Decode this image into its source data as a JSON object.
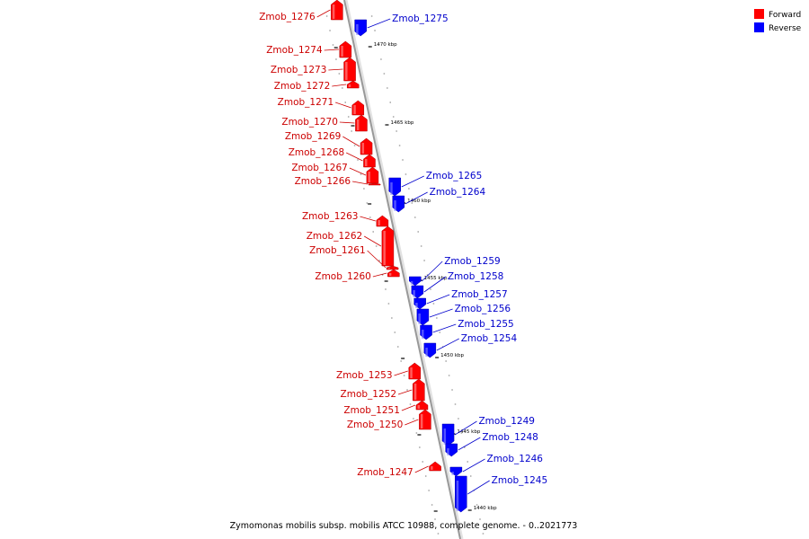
{
  "caption": "Zymomonas mobilis subsp. mobilis ATCC 10988, complete genome. - 0..2021773",
  "legend": [
    {
      "label": "Forward",
      "color": "#ff0000"
    },
    {
      "label": "Reverse",
      "color": "#0000ff"
    }
  ],
  "colors": {
    "forward": "#ff0000",
    "reverse": "#0000ff",
    "forward_label": "#cc0000",
    "reverse_label": "#0000cc",
    "backbone": "#999999"
  },
  "ticks": [
    {
      "label": "1470 kbp"
    },
    {
      "label": "1465 kbp"
    },
    {
      "label": "1460 kbp"
    },
    {
      "label": "1455 kbp"
    },
    {
      "label": "1450 kbp"
    },
    {
      "label": "1445 kbp"
    },
    {
      "label": "1440 kbp"
    }
  ],
  "genes": [
    {
      "name": "Zmob_1276",
      "strand": "forward"
    },
    {
      "name": "Zmob_1275",
      "strand": "reverse"
    },
    {
      "name": "Zmob_1274",
      "strand": "forward"
    },
    {
      "name": "Zmob_1273",
      "strand": "forward"
    },
    {
      "name": "Zmob_1272",
      "strand": "forward"
    },
    {
      "name": "Zmob_1271",
      "strand": "forward"
    },
    {
      "name": "Zmob_1270",
      "strand": "forward"
    },
    {
      "name": "Zmob_1269",
      "strand": "forward"
    },
    {
      "name": "Zmob_1268",
      "strand": "forward"
    },
    {
      "name": "Zmob_1267",
      "strand": "forward"
    },
    {
      "name": "Zmob_1266",
      "strand": "forward"
    },
    {
      "name": "Zmob_1265",
      "strand": "reverse"
    },
    {
      "name": "Zmob_1264",
      "strand": "reverse"
    },
    {
      "name": "Zmob_1263",
      "strand": "forward"
    },
    {
      "name": "Zmob_1262",
      "strand": "forward"
    },
    {
      "name": "Zmob_1261",
      "strand": "forward"
    },
    {
      "name": "Zmob_1260",
      "strand": "forward"
    },
    {
      "name": "Zmob_1259",
      "strand": "reverse"
    },
    {
      "name": "Zmob_1258",
      "strand": "reverse"
    },
    {
      "name": "Zmob_1257",
      "strand": "reverse"
    },
    {
      "name": "Zmob_1256",
      "strand": "reverse"
    },
    {
      "name": "Zmob_1255",
      "strand": "reverse"
    },
    {
      "name": "Zmob_1254",
      "strand": "reverse"
    },
    {
      "name": "Zmob_1253",
      "strand": "forward"
    },
    {
      "name": "Zmob_1252",
      "strand": "forward"
    },
    {
      "name": "Zmob_1251",
      "strand": "forward"
    },
    {
      "name": "Zmob_1250",
      "strand": "forward"
    },
    {
      "name": "Zmob_1249",
      "strand": "reverse"
    },
    {
      "name": "Zmob_1248",
      "strand": "reverse"
    },
    {
      "name": "Zmob_1247",
      "strand": "forward"
    },
    {
      "name": "Zmob_1246",
      "strand": "reverse"
    },
    {
      "name": "Zmob_1245",
      "strand": "reverse"
    }
  ]
}
